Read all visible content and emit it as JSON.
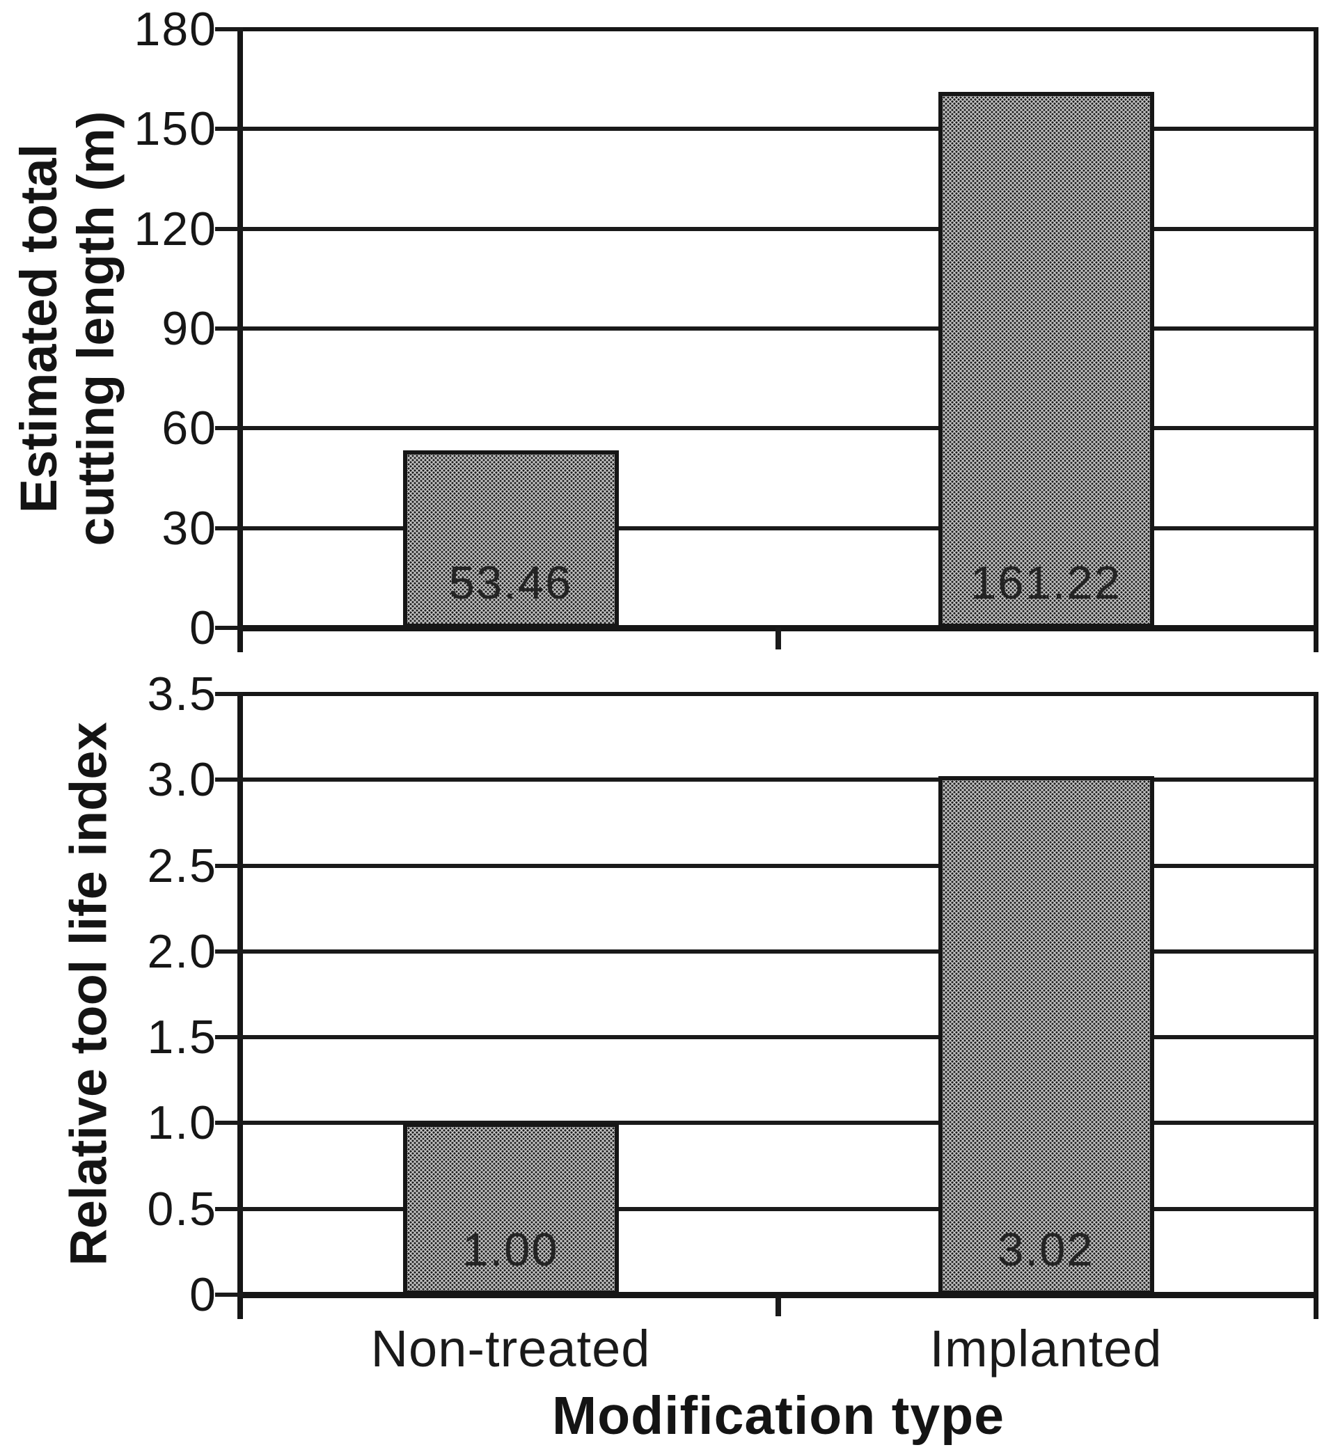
{
  "figure": {
    "background": "#ffffff",
    "ink_color": "#161616",
    "bar_fill_color": "#a9a9a9",
    "bar_fill_style": "halftone-dots",
    "bar_border_color": "#161616"
  },
  "x_axis": {
    "title": "Modification type",
    "categories": [
      "Non-treated",
      "Implanted"
    ]
  },
  "chart_data": [
    {
      "type": "bar",
      "title": "",
      "categories": [
        "Non-treated",
        "Implanted"
      ],
      "values": [
        53.46,
        161.22
      ],
      "bar_labels": [
        "53.46",
        "161.22"
      ],
      "xlabel": "Modification type",
      "ylabel": "Estimated total cutting length (m)",
      "ylabel_lines": [
        "Estimated total",
        "cutting length (m)"
      ],
      "ylim": [
        0,
        180
      ],
      "ytick_step": 30,
      "yticks": [
        "180",
        "150",
        "120",
        "90",
        "60",
        "30",
        "0"
      ],
      "grid": true,
      "legend": "none"
    },
    {
      "type": "bar",
      "title": "",
      "categories": [
        "Non-treated",
        "Implanted"
      ],
      "values": [
        1.0,
        3.02
      ],
      "bar_labels": [
        "1.00",
        "3.02"
      ],
      "xlabel": "Modification type",
      "ylabel": "Relative tool life index",
      "ylabel_lines": [
        "Relative tool life index"
      ],
      "ylim": [
        0,
        3.5
      ],
      "ytick_step": 0.5,
      "yticks": [
        "3.5",
        "3.0",
        "2.5",
        "2.0",
        "1.5",
        "1.0",
        "0.5",
        "0"
      ],
      "grid": true,
      "legend": "none"
    }
  ]
}
